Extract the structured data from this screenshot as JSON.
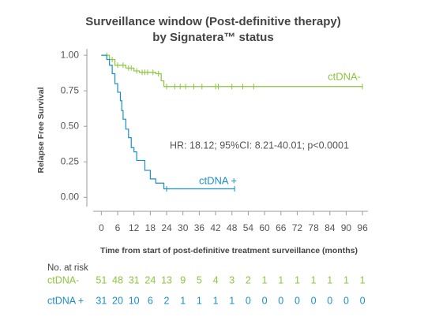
{
  "chart_data": {
    "type": "step",
    "title": "Surveillance window (Post-definitive therapy)",
    "subtitle": "by Signatera™ status",
    "x_label": "Time from start of post-definitive treatment surveillance (months)",
    "y_label": "Relapse Free Survival",
    "annotation": "HR: 18.12; 95%CI: 8.21-40.01; p<0.0001",
    "xlim": [
      -3,
      98
    ],
    "ylim": [
      -0.065,
      1.045
    ],
    "xticks": [
      0,
      6,
      12,
      18,
      24,
      30,
      36,
      42,
      48,
      54,
      60,
      66,
      72,
      78,
      84,
      90,
      96
    ],
    "yticks": [
      {
        "value": 0,
        "label": "0.00"
      },
      {
        "value": 0.25,
        "label": "0.25"
      },
      {
        "value": 0.5,
        "label": "0.50"
      },
      {
        "value": 0.75,
        "label": "0.75"
      },
      {
        "value": 1,
        "label": "1.00"
      }
    ],
    "risk_title": "No. at risk",
    "series": [
      {
        "name": "ctDNA-",
        "color": "#8cc63f",
        "x": [
          0,
          3,
          5,
          9,
          12,
          14,
          20,
          22,
          23,
          96
        ],
        "values": [
          1.0,
          0.97,
          0.93,
          0.91,
          0.89,
          0.88,
          0.87,
          0.82,
          0.78,
          0.78
        ],
        "censored": [
          2,
          4,
          6,
          8,
          10,
          11,
          13,
          15,
          16,
          17,
          19,
          21,
          24,
          27,
          29,
          31,
          34,
          37,
          42,
          43,
          48,
          52,
          56,
          96
        ],
        "at_risk": [
          51,
          48,
          31,
          24,
          13,
          9,
          5,
          4,
          3,
          2,
          1,
          1,
          1,
          1,
          1,
          1,
          1
        ]
      },
      {
        "name": "ctDNA +",
        "color": "#1a8fc9",
        "x": [
          0,
          2,
          3,
          4,
          5,
          6,
          7,
          7.5,
          8,
          9,
          10,
          11,
          12,
          13,
          16,
          18,
          20,
          23,
          49
        ],
        "values": [
          1.0,
          0.97,
          0.93,
          0.87,
          0.8,
          0.74,
          0.68,
          0.61,
          0.55,
          0.48,
          0.42,
          0.35,
          0.32,
          0.26,
          0.19,
          0.13,
          0.1,
          0.06,
          0.06
        ],
        "censored": [
          24,
          49
        ],
        "at_risk": [
          31,
          20,
          10,
          6,
          2,
          1,
          1,
          1,
          1,
          0,
          0,
          0,
          0,
          0,
          0,
          0,
          0
        ]
      }
    ]
  }
}
